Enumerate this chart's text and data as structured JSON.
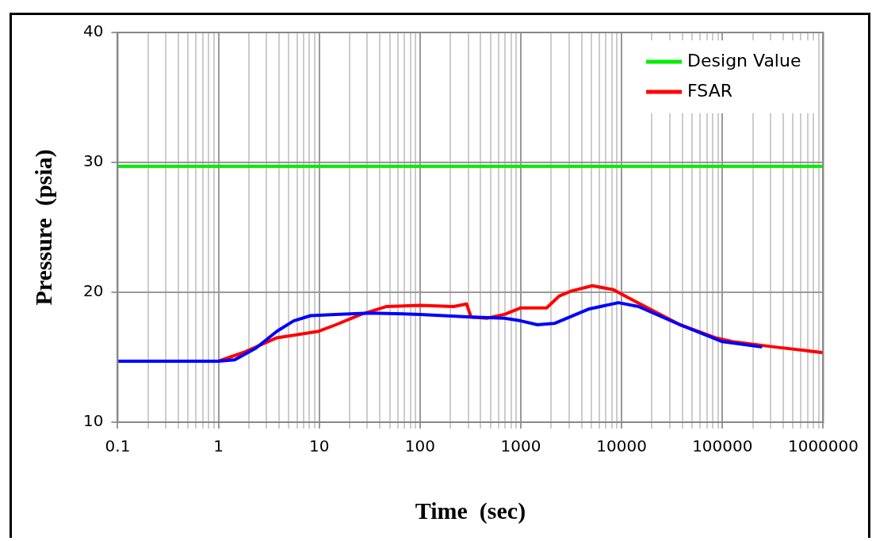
{
  "chart_data": {
    "type": "line",
    "xlabel": "Time  (sec)",
    "ylabel": "Pressure  (psia)",
    "log": "x",
    "xlim": [
      0.1,
      1000000
    ],
    "xticks": [
      0.1,
      1,
      10,
      100,
      1000,
      10000,
      100000,
      1000000
    ],
    "ylim": [
      10,
      40
    ],
    "yticks": [
      10,
      20,
      30,
      40
    ],
    "grid": true,
    "legend": "top right",
    "marker": "none",
    "line_style": "solid",
    "series": [
      {
        "name": "Design Value",
        "color": "#00ee00",
        "x": [
          0.1,
          1000000
        ],
        "values": [
          29.7,
          29.7
        ]
      },
      {
        "name": "FSAR",
        "color": "#ff0000",
        "x": [
          1,
          1.75,
          3.8,
          9.9,
          14.6,
          26,
          46,
          100,
          215,
          290,
          320,
          460,
          690,
          1000,
          1800,
          2390,
          3170,
          5120,
          8300,
          12200,
          21400,
          38000,
          85000,
          125000,
          320000,
          1000000
        ],
        "values": [
          14.7,
          15.35,
          16.5,
          17.0,
          17.5,
          18.3,
          18.9,
          19.0,
          18.9,
          19.1,
          18.1,
          18.0,
          18.3,
          18.8,
          18.8,
          19.7,
          20.1,
          20.5,
          20.2,
          19.5,
          18.5,
          17.5,
          16.5,
          16.2,
          15.8,
          15.35
        ]
      },
      {
        "color": "#0000ff",
        "x": [
          0.1,
          1,
          1.45,
          2.35,
          3.8,
          5.57,
          8.2,
          14.6,
          31.5,
          100,
          320,
          690,
          1000,
          1460,
          2150,
          4680,
          9300,
          14700,
          38000,
          100000,
          240000
        ],
        "values": [
          14.7,
          14.7,
          14.8,
          15.7,
          17.0,
          17.8,
          18.2,
          18.3,
          18.4,
          18.3,
          18.1,
          18.0,
          17.8,
          17.5,
          17.6,
          18.7,
          19.2,
          18.9,
          17.5,
          16.2,
          15.8
        ]
      }
    ]
  }
}
